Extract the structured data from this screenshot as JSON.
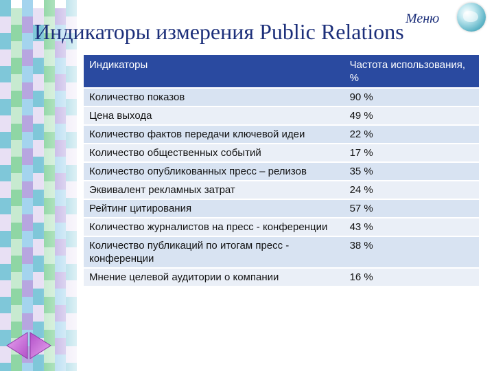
{
  "slide": {
    "title": "Индикаторы измерения Public Relations",
    "menu_label": "Меню"
  },
  "table": {
    "headers": [
      "Индикаторы",
      "Частота использования, %"
    ],
    "rows": [
      {
        "indicator": "Количество показов",
        "frequency": "90 %"
      },
      {
        "indicator": "Цена выхода",
        "frequency": "49 %"
      },
      {
        "indicator": "Количество фактов передачи ключевой идеи",
        "frequency": "22 %"
      },
      {
        "indicator": "Количество общественных событий",
        "frequency": "17 %"
      },
      {
        "indicator": "Количество опубликованных пресс – релизов",
        "frequency": "35 %"
      },
      {
        "indicator": "Эквивалент рекламных затрат",
        "frequency": "24 %"
      },
      {
        "indicator": "Рейтинг цитирования",
        "frequency": "57 %"
      },
      {
        "indicator": "Количество журналистов на пресс - конференции",
        "frequency": "43 %"
      },
      {
        "indicator": "Количество публикаций по итогам пресс - конференции",
        "frequency": "38 %"
      },
      {
        "indicator": "Мнение целевой аудитории о компании",
        "frequency": "16 %"
      }
    ]
  },
  "navigation": {
    "prev_icon": "arrow-left-icon",
    "next_icon": "arrow-right-icon"
  },
  "colors": {
    "title": "#1c2f7a",
    "header_bg": "#2a4aa0",
    "row_bg_odd": "#d8e3f2",
    "row_bg_even": "#eaeff7",
    "mosaic": [
      "#7fc7d9",
      "#b7a6e0",
      "#8fd6a4",
      "#e8e0f4",
      "#a4d4ee",
      "#c7ead0"
    ]
  }
}
